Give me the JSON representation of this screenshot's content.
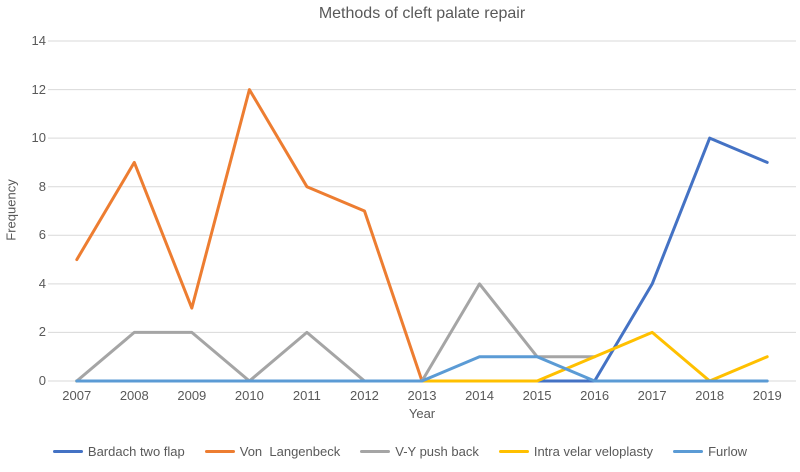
{
  "chart_data": {
    "type": "line",
    "title": "Methods of cleft palate repair",
    "xlabel": "Year",
    "ylabel": "Frequency",
    "categories": [
      "2007",
      "2008",
      "2009",
      "2010",
      "2011",
      "2012",
      "2013",
      "2014",
      "2015",
      "2016",
      "2017",
      "2018",
      "2019"
    ],
    "ylim": [
      0,
      14
    ],
    "ytick_step": 2,
    "grid": true,
    "legend_position": "bottom",
    "gridline_color": "#D9D9D9",
    "axis_text_color": "#595959",
    "series": [
      {
        "name": "Bardach two flap",
        "color": "#4472C4",
        "values": [
          0,
          0,
          0,
          0,
          0,
          0,
          0,
          0,
          0,
          0,
          4,
          10,
          9
        ]
      },
      {
        "name": "Von  Langenbeck",
        "color": "#ED7D31",
        "values": [
          5,
          9,
          3,
          12,
          8,
          7,
          0,
          null,
          null,
          null,
          null,
          null,
          null
        ]
      },
      {
        "name": "V-Y push back",
        "color": "#A5A5A5",
        "values": [
          0,
          2,
          2,
          0,
          2,
          0,
          0,
          4,
          1,
          1,
          null,
          null,
          null
        ]
      },
      {
        "name": "Intra velar veloplasty",
        "color": "#FFC000",
        "values": [
          0,
          0,
          0,
          0,
          0,
          0,
          0,
          0,
          0,
          1,
          2,
          0,
          1
        ]
      },
      {
        "name": "Furlow",
        "color": "#5B9BD5",
        "values": [
          0,
          0,
          0,
          0,
          0,
          0,
          0,
          1,
          1,
          0,
          0,
          0,
          0
        ]
      }
    ]
  }
}
